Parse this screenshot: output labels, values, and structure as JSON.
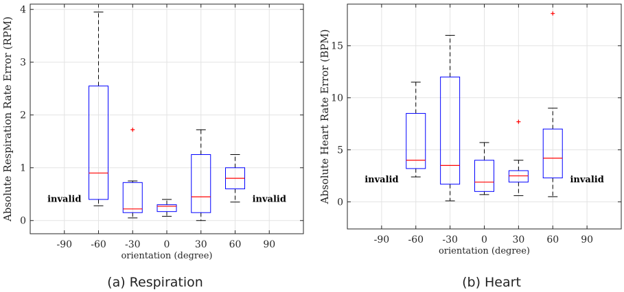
{
  "chart_data": [
    {
      "type": "box",
      "caption": "(a) Respiration",
      "xlabel": "orientation (degree)",
      "ylabel": "Absolute Respiration Rate Error (RPM)",
      "categories": [
        "-90",
        "-60",
        "-30",
        "0",
        "30",
        "60",
        "90"
      ],
      "ylim": [
        -0.25,
        4.1
      ],
      "yticks": [
        0,
        1,
        2,
        3,
        4
      ],
      "grid": true,
      "boxes": [
        {
          "x": "-60",
          "whisker_low": 0.28,
          "q1": 0.4,
          "median": 0.9,
          "q3": 2.55,
          "whisker_high": 3.95,
          "outliers": []
        },
        {
          "x": "-30",
          "whisker_low": 0.05,
          "q1": 0.15,
          "median": 0.22,
          "q3": 0.72,
          "whisker_high": 0.75,
          "outliers": [
            1.72
          ]
        },
        {
          "x": "0",
          "whisker_low": 0.08,
          "q1": 0.17,
          "median": 0.27,
          "q3": 0.3,
          "whisker_high": 0.4,
          "outliers": []
        },
        {
          "x": "30",
          "whisker_low": 0.0,
          "q1": 0.15,
          "median": 0.45,
          "q3": 1.25,
          "whisker_high": 1.72,
          "outliers": []
        },
        {
          "x": "60",
          "whisker_low": 0.35,
          "q1": 0.6,
          "median": 0.8,
          "q3": 1.0,
          "whisker_high": 1.25,
          "outliers": []
        }
      ],
      "annotations": [
        {
          "text": "invalid",
          "x": "-90",
          "y": 0.42
        },
        {
          "text": "invalid",
          "x": "90",
          "y": 0.42
        }
      ]
    },
    {
      "type": "box",
      "caption": "(b) Heart",
      "xlabel": "orientation (degree)",
      "ylabel": "Absolute Heart Rate Error (BPM)",
      "categories": [
        "-90",
        "-60",
        "-30",
        "0",
        "30",
        "60",
        "90"
      ],
      "ylim": [
        -2.6,
        19
      ],
      "yticks": [
        0,
        5,
        10,
        15
      ],
      "grid": true,
      "boxes": [
        {
          "x": "-60",
          "whisker_low": 2.4,
          "q1": 3.2,
          "median": 4.0,
          "q3": 8.5,
          "whisker_high": 11.5,
          "outliers": []
        },
        {
          "x": "-30",
          "whisker_low": 0.1,
          "q1": 1.7,
          "median": 3.5,
          "q3": 12.0,
          "whisker_high": 16.0,
          "outliers": []
        },
        {
          "x": "0",
          "whisker_low": 0.7,
          "q1": 1.0,
          "median": 1.9,
          "q3": 4.0,
          "whisker_high": 5.7,
          "outliers": []
        },
        {
          "x": "30",
          "whisker_low": 0.6,
          "q1": 1.9,
          "median": 2.5,
          "q3": 3.0,
          "whisker_high": 4.0,
          "outliers": [
            7.7
          ]
        },
        {
          "x": "60",
          "whisker_low": 0.5,
          "q1": 2.3,
          "median": 4.2,
          "q3": 7.0,
          "whisker_high": 9.0,
          "outliers": [
            18.1
          ]
        }
      ],
      "annotations": [
        {
          "text": "invalid",
          "x": "-90",
          "y": 2.2
        },
        {
          "text": "invalid",
          "x": "90",
          "y": 2.2
        }
      ]
    }
  ],
  "colors": {
    "box": "#0000ff",
    "median": "#ff0000",
    "outlier": "#ff0000",
    "whisker": "#000000",
    "grid": "#e3e3e3",
    "axis": "#262626"
  }
}
